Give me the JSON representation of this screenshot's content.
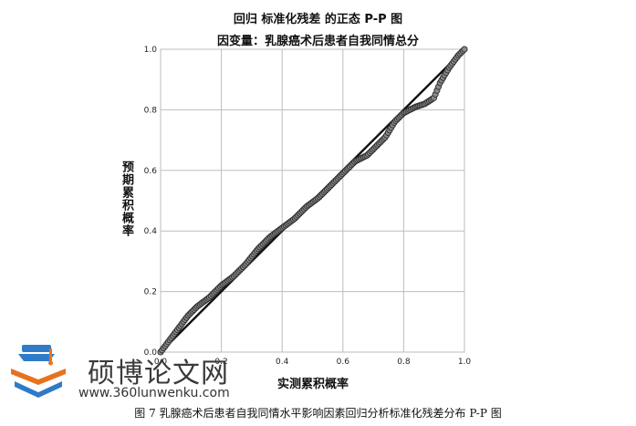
{
  "chart_data": {
    "type": "scatter",
    "title": "回归 标准化残差 的正态 P-P 图",
    "subtitle": "因变量：乳腺癌术后患者自我同情总分",
    "xlabel": "实测累积概率",
    "ylabel": "预期累积概率",
    "xlim": [
      0,
      1
    ],
    "ylim": [
      0,
      1
    ],
    "xticks": [
      "0.0",
      "0.2",
      "0.4",
      "0.6",
      "0.8",
      "1.0"
    ],
    "yticks": [
      "0.0",
      "0.2",
      "0.4",
      "0.6",
      "0.8",
      "1.0"
    ],
    "grid": true,
    "reference_line": {
      "from": [
        0,
        0
      ],
      "to": [
        1,
        1
      ]
    },
    "curve_knots": [
      [
        0.0,
        0.0
      ],
      [
        0.03,
        0.04
      ],
      [
        0.06,
        0.08
      ],
      [
        0.09,
        0.12
      ],
      [
        0.12,
        0.15
      ],
      [
        0.16,
        0.18
      ],
      [
        0.2,
        0.22
      ],
      [
        0.24,
        0.25
      ],
      [
        0.28,
        0.29
      ],
      [
        0.32,
        0.34
      ],
      [
        0.36,
        0.38
      ],
      [
        0.4,
        0.41
      ],
      [
        0.44,
        0.44
      ],
      [
        0.48,
        0.48
      ],
      [
        0.52,
        0.51
      ],
      [
        0.56,
        0.55
      ],
      [
        0.6,
        0.59
      ],
      [
        0.64,
        0.63
      ],
      [
        0.68,
        0.65
      ],
      [
        0.71,
        0.68
      ],
      [
        0.74,
        0.71
      ],
      [
        0.77,
        0.76
      ],
      [
        0.8,
        0.79
      ],
      [
        0.84,
        0.81
      ],
      [
        0.87,
        0.82
      ],
      [
        0.9,
        0.84
      ],
      [
        0.92,
        0.89
      ],
      [
        0.95,
        0.94
      ],
      [
        0.98,
        0.98
      ],
      [
        1.0,
        1.0
      ]
    ],
    "point_count": 200
  },
  "watermark": {
    "name": "硕博论文网",
    "url": "www.360lunwenku.com"
  },
  "caption": "图 7  乳腺癌术后患者自我同情水平影响因素回归分析标准化残差分布  P-P  图",
  "colors": {
    "point_fill": "#8a8a8a",
    "point_stroke": "#2a2a2a",
    "reference_line": "#111111",
    "grid": "#bdbdbd",
    "logo_blue": "#2f7bc8",
    "logo_orange": "#e8731e"
  }
}
